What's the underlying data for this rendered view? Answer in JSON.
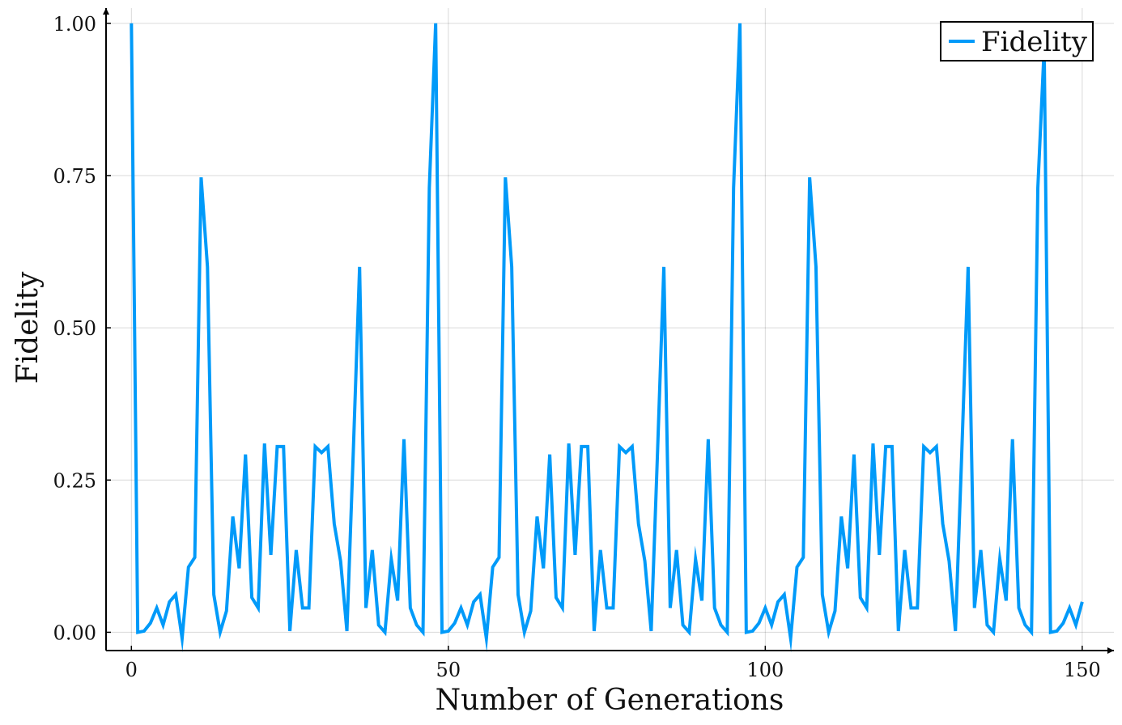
{
  "chart_data": {
    "type": "line",
    "title": "",
    "xlabel": "Number of Generations",
    "ylabel": "Fidelity",
    "xlim": [
      -4,
      155
    ],
    "ylim": [
      -0.03,
      1.025
    ],
    "xticks": [
      0,
      50,
      100,
      150
    ],
    "xtick_labels": [
      "0",
      "50",
      "100",
      "150"
    ],
    "yticks": [
      0,
      0.25,
      0.5,
      0.75,
      1
    ],
    "ytick_labels": [
      "0.00",
      "0.25",
      "0.50",
      "0.75",
      "1.00"
    ],
    "grid": true,
    "legend_position": "top-right",
    "series": [
      {
        "name": "Fidelity",
        "color": "#009af9",
        "x": [
          0,
          1,
          2,
          3,
          4,
          5,
          6,
          7,
          8,
          9,
          10,
          11,
          12,
          13,
          14,
          15,
          16,
          17,
          18,
          19,
          20,
          21,
          22,
          23,
          24,
          25,
          26,
          27,
          28,
          29,
          30,
          31,
          32,
          33,
          34,
          35,
          36,
          37,
          38,
          39,
          40,
          41,
          42,
          43,
          44,
          45,
          46,
          47,
          48,
          49,
          50,
          51,
          52,
          53,
          54,
          55,
          56,
          57,
          58,
          59,
          60,
          61,
          62,
          63,
          64,
          65,
          66,
          67,
          68,
          69,
          70,
          71,
          72,
          73,
          74,
          75,
          76,
          77,
          78,
          79,
          80,
          81,
          82,
          83,
          84,
          85,
          86,
          87,
          88,
          89,
          90,
          91,
          92,
          93,
          94,
          95,
          96,
          97,
          98,
          99,
          100,
          101,
          102,
          103,
          104,
          105,
          106,
          107,
          108,
          109,
          110,
          111,
          112,
          113,
          114,
          115,
          116,
          117,
          118,
          119,
          120,
          121,
          122,
          123,
          124,
          125,
          126,
          127,
          128,
          129,
          130,
          131,
          132,
          133,
          134,
          135,
          136,
          137,
          138,
          139,
          140,
          141,
          142,
          143,
          144,
          145,
          146,
          147,
          148,
          149,
          150
        ],
        "y": [
          1.0,
          0.0,
          0.002,
          0.015,
          0.04,
          0.012,
          0.05,
          0.062,
          -0.01,
          0.107,
          0.123,
          0.747,
          0.6,
          0.062,
          0.0,
          0.035,
          0.19,
          0.105,
          0.292,
          0.057,
          0.04,
          0.31,
          0.127,
          0.305,
          0.305,
          0.002,
          0.135,
          0.04,
          0.04,
          0.305,
          0.295,
          0.305,
          0.178,
          0.117,
          0.002,
          0.295,
          0.6,
          0.04,
          0.135,
          0.012,
          0.0,
          0.12,
          0.052,
          0.317,
          0.04,
          0.012,
          0.0,
          0.73,
          1.0,
          0.0,
          0.002,
          0.015,
          0.04,
          0.012,
          0.05,
          0.062,
          -0.01,
          0.107,
          0.123,
          0.747,
          0.6,
          0.062,
          0.0,
          0.035,
          0.19,
          0.105,
          0.292,
          0.057,
          0.04,
          0.31,
          0.127,
          0.305,
          0.305,
          0.002,
          0.135,
          0.04,
          0.04,
          0.305,
          0.295,
          0.305,
          0.178,
          0.117,
          0.002,
          0.295,
          0.6,
          0.04,
          0.135,
          0.012,
          0.0,
          0.12,
          0.052,
          0.317,
          0.04,
          0.012,
          0.0,
          0.73,
          1.0,
          0.0,
          0.002,
          0.015,
          0.04,
          0.012,
          0.05,
          0.062,
          -0.01,
          0.107,
          0.123,
          0.747,
          0.6,
          0.062,
          0.0,
          0.035,
          0.19,
          0.105,
          0.292,
          0.057,
          0.04,
          0.31,
          0.127,
          0.305,
          0.305,
          0.002,
          0.135,
          0.04,
          0.04,
          0.305,
          0.295,
          0.305,
          0.178,
          0.117,
          0.002,
          0.295,
          0.6,
          0.04,
          0.135,
          0.012,
          0.0,
          0.12,
          0.052,
          0.317,
          0.04,
          0.012,
          0.0,
          0.73,
          0.96,
          0.0,
          0.002,
          0.015,
          0.04,
          0.012,
          0.05
        ]
      }
    ]
  }
}
